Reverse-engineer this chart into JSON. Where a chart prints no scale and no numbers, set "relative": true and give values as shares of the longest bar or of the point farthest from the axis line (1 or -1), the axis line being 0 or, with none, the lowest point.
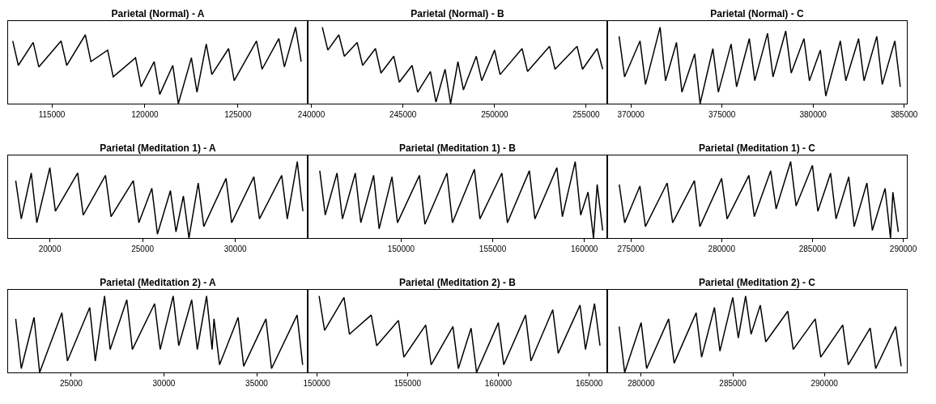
{
  "chart_data": [
    {
      "type": "line",
      "relative": true,
      "title": "Parietal (Normal) - A",
      "xlim": [
        112650,
        128750
      ],
      "xticks": [
        115000,
        120000,
        125000
      ],
      "x": [
        112900,
        113200,
        114000,
        114300,
        115500,
        115800,
        116800,
        117100,
        118000,
        118300,
        119500,
        119800,
        120500,
        120800,
        121500,
        121800,
        122500,
        122800,
        123300,
        123600,
        124500,
        124800,
        126000,
        126300,
        127200,
        127500,
        128100,
        128400
      ],
      "series": [
        {
          "color": "#000000",
          "values": [
            0.82,
            0.5,
            0.8,
            0.48,
            0.82,
            0.5,
            0.9,
            0.55,
            0.7,
            0.35,
            0.6,
            0.22,
            0.55,
            0.12,
            0.5,
            0.0,
            0.6,
            0.15,
            0.78,
            0.38,
            0.72,
            0.3,
            0.82,
            0.45,
            0.85,
            0.48,
            1.0,
            0.55
          ]
        }
      ]
    },
    {
      "type": "line",
      "relative": true,
      "title": "Parietal (Normal) - B",
      "xlim": [
        239800,
        256150
      ],
      "xticks": [
        240000,
        245000,
        250000,
        255000
      ],
      "x": [
        240600,
        240900,
        241500,
        241800,
        242500,
        242800,
        243500,
        243800,
        244500,
        244800,
        245500,
        245800,
        246500,
        246800,
        247300,
        247600,
        248000,
        248300,
        249000,
        249300,
        250000,
        250300,
        251500,
        251800,
        253000,
        253300,
        254500,
        254800,
        255600,
        255900
      ],
      "series": [
        {
          "color": "#000000",
          "values": [
            1.0,
            0.7,
            0.9,
            0.62,
            0.8,
            0.5,
            0.72,
            0.4,
            0.62,
            0.28,
            0.5,
            0.15,
            0.42,
            0.02,
            0.45,
            0.0,
            0.55,
            0.18,
            0.62,
            0.3,
            0.7,
            0.38,
            0.72,
            0.42,
            0.75,
            0.45,
            0.75,
            0.45,
            0.72,
            0.45
          ]
        }
      ]
    },
    {
      "type": "line",
      "relative": true,
      "title": "Parietal (Normal) - C",
      "xlim": [
        368700,
        385150
      ],
      "xticks": [
        370000,
        375000,
        380000,
        385000
      ],
      "x": [
        369350,
        369650,
        370500,
        370800,
        371600,
        371900,
        372500,
        372800,
        373500,
        373800,
        374500,
        374800,
        375500,
        375800,
        376500,
        376800,
        377500,
        377800,
        378500,
        378800,
        379500,
        379800,
        380400,
        380700,
        381500,
        381800,
        382500,
        382800,
        383500,
        383800,
        384490,
        384790
      ],
      "series": [
        {
          "color": "#000000",
          "values": [
            0.88,
            0.35,
            0.82,
            0.25,
            1.0,
            0.3,
            0.8,
            0.15,
            0.65,
            0.0,
            0.72,
            0.15,
            0.78,
            0.22,
            0.85,
            0.3,
            0.92,
            0.35,
            0.95,
            0.4,
            0.85,
            0.3,
            0.7,
            0.1,
            0.82,
            0.3,
            0.85,
            0.3,
            0.88,
            0.25,
            0.82,
            0.22
          ]
        }
      ]
    },
    {
      "type": "line",
      "relative": true,
      "title": "Parietal (Meditation 1) - A",
      "xlim": [
        17750,
        33900
      ],
      "xticks": [
        20000,
        25000,
        30000
      ],
      "x": [
        18160,
        18460,
        19000,
        19300,
        20000,
        20300,
        21500,
        21800,
        23000,
        23300,
        24500,
        24800,
        25500,
        25800,
        26500,
        26800,
        27200,
        27500,
        28000,
        28300,
        29500,
        29800,
        31000,
        31300,
        32500,
        32800,
        33340,
        33640
      ],
      "series": [
        {
          "color": "#000000",
          "values": [
            0.75,
            0.25,
            0.85,
            0.2,
            0.92,
            0.35,
            0.85,
            0.3,
            0.82,
            0.28,
            0.75,
            0.2,
            0.65,
            0.05,
            0.62,
            0.08,
            0.55,
            0.0,
            0.72,
            0.15,
            0.78,
            0.2,
            0.8,
            0.25,
            0.82,
            0.25,
            1.0,
            0.35
          ]
        }
      ]
    },
    {
      "type": "line",
      "relative": true,
      "title": "Parietal (Meditation 1) - B",
      "xlim": [
        144900,
        161250
      ],
      "xticks": [
        150000,
        155000,
        160000
      ],
      "x": [
        145560,
        145860,
        146500,
        146800,
        147500,
        147800,
        148500,
        148800,
        149500,
        149800,
        151000,
        151300,
        152500,
        152800,
        154000,
        154300,
        155500,
        155800,
        157000,
        157300,
        158500,
        158800,
        159500,
        159800,
        160200,
        160500,
        160700,
        161000
      ],
      "series": [
        {
          "color": "#000000",
          "values": [
            0.88,
            0.3,
            0.85,
            0.25,
            0.85,
            0.2,
            0.82,
            0.12,
            0.8,
            0.2,
            0.82,
            0.18,
            0.85,
            0.2,
            0.9,
            0.25,
            0.85,
            0.2,
            0.88,
            0.25,
            0.92,
            0.28,
            1.0,
            0.3,
            0.6,
            0.0,
            0.7,
            0.1
          ]
        }
      ]
    },
    {
      "type": "line",
      "relative": true,
      "title": "Parietal (Meditation 1) - C",
      "xlim": [
        273700,
        290200
      ],
      "xticks": [
        275000,
        280000,
        285000,
        290000
      ],
      "x": [
        274360,
        274660,
        275500,
        275800,
        277000,
        277300,
        278500,
        278800,
        280000,
        280300,
        281500,
        281800,
        282700,
        283000,
        283800,
        284100,
        285000,
        285300,
        286000,
        286300,
        287000,
        287300,
        288000,
        288300,
        289000,
        289300,
        289430,
        289730
      ],
      "series": [
        {
          "color": "#000000",
          "values": [
            0.7,
            0.2,
            0.68,
            0.15,
            0.72,
            0.2,
            0.75,
            0.15,
            0.78,
            0.25,
            0.82,
            0.28,
            0.88,
            0.38,
            1.0,
            0.42,
            0.95,
            0.35,
            0.85,
            0.25,
            0.8,
            0.15,
            0.72,
            0.1,
            0.65,
            0.0,
            0.6,
            0.08
          ]
        }
      ]
    },
    {
      "type": "line",
      "relative": true,
      "title": "Parietal (Meditation 2) - A",
      "xlim": [
        21600,
        37750
      ],
      "xticks": [
        25000,
        30000,
        35000
      ],
      "x": [
        22010,
        22310,
        23000,
        23300,
        24500,
        24800,
        26000,
        26300,
        26800,
        27100,
        28000,
        28300,
        29500,
        29800,
        30500,
        30800,
        31500,
        31800,
        32300,
        32600,
        32700,
        33000,
        34000,
        34300,
        35500,
        35800,
        37180,
        37480
      ],
      "series": [
        {
          "color": "#000000",
          "values": [
            0.7,
            0.05,
            0.72,
            0.0,
            0.78,
            0.15,
            0.85,
            0.15,
            1.0,
            0.3,
            0.95,
            0.3,
            0.9,
            0.3,
            1.0,
            0.35,
            0.95,
            0.3,
            1.0,
            0.3,
            0.7,
            0.1,
            0.72,
            0.08,
            0.7,
            0.05,
            0.75,
            0.1
          ]
        }
      ]
    },
    {
      "type": "line",
      "relative": true,
      "title": "Parietal (Meditation 2) - B",
      "xlim": [
        149500,
        166000
      ],
      "xticks": [
        150000,
        155000,
        160000,
        165000
      ],
      "x": [
        150130,
        150430,
        151500,
        151800,
        153000,
        153300,
        154500,
        154800,
        156000,
        156300,
        157500,
        157800,
        158500,
        158800,
        160000,
        160300,
        161500,
        161800,
        163000,
        163300,
        164500,
        164800,
        165300,
        165600
      ],
      "series": [
        {
          "color": "#000000",
          "values": [
            1.0,
            0.55,
            0.98,
            0.5,
            0.75,
            0.35,
            0.68,
            0.2,
            0.62,
            0.1,
            0.6,
            0.05,
            0.58,
            0.0,
            0.65,
            0.1,
            0.75,
            0.15,
            0.82,
            0.25,
            0.88,
            0.3,
            0.9,
            0.35
          ]
        }
      ]
    },
    {
      "type": "line",
      "relative": true,
      "title": "Parietal (Meditation 2) - C",
      "xlim": [
        278150,
        294500
      ],
      "xticks": [
        280000,
        285000,
        290000
      ],
      "x": [
        278800,
        279100,
        280000,
        280300,
        281500,
        281800,
        283000,
        283300,
        284000,
        284300,
        285000,
        285300,
        285700,
        286000,
        286500,
        286800,
        288000,
        288300,
        289500,
        289800,
        291000,
        291300,
        292500,
        292800,
        293890,
        294190
      ],
      "series": [
        {
          "color": "#000000",
          "values": [
            0.6,
            0.0,
            0.65,
            0.05,
            0.7,
            0.12,
            0.78,
            0.2,
            0.85,
            0.28,
            0.98,
            0.45,
            1.0,
            0.5,
            0.88,
            0.4,
            0.8,
            0.3,
            0.7,
            0.2,
            0.62,
            0.1,
            0.58,
            0.05,
            0.6,
            0.08
          ]
        }
      ]
    }
  ]
}
